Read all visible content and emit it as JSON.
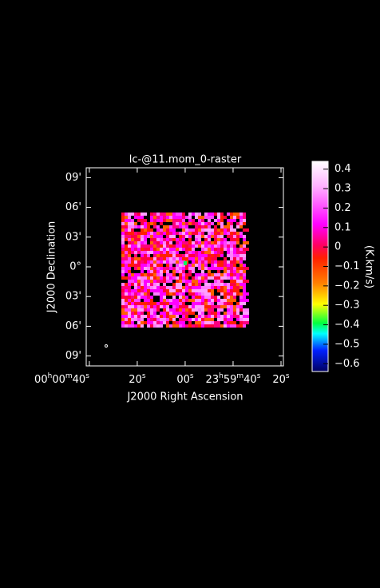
{
  "chart_data": {
    "type": "image",
    "title": "lc-@11.mom_0-raster",
    "x_label": "J2000 Right Ascension",
    "y_label": "J2000 Declination",
    "xlim": [
      41.3,
      -41
    ],
    "xticks": [
      {
        "value": 40,
        "label": "00h00m40s"
      },
      {
        "value": 20,
        "label": "20s"
      },
      {
        "value": 0,
        "label": "00s"
      },
      {
        "value": -20,
        "label": "23h59m40s"
      },
      {
        "value": -40,
        "label": "20s"
      }
    ],
    "ylim": [
      -10,
      10
    ],
    "yticks": [
      {
        "value": 9,
        "label": "09'"
      },
      {
        "value": 6,
        "label": "06'"
      },
      {
        "value": 3,
        "label": "03'"
      },
      {
        "value": 0,
        "label": "0°"
      },
      {
        "value": -3,
        "label": "03'"
      },
      {
        "value": -6,
        "label": "06'"
      },
      {
        "value": -9,
        "label": "09'"
      }
    ],
    "colorbar": {
      "label": "(K.km/s)",
      "lim": [
        -0.64,
        0.44
      ],
      "ticks": [
        {
          "value": 0.4,
          "label": "0.4"
        },
        {
          "value": 0.3,
          "label": "0.3"
        },
        {
          "value": 0.2,
          "label": "0.2"
        },
        {
          "value": 0.1,
          "label": "0.1"
        },
        {
          "value": 0,
          "label": "0"
        },
        {
          "value": -0.1,
          "label": "−0.1"
        },
        {
          "value": -0.2,
          "label": "−0.2"
        },
        {
          "value": -0.3,
          "label": "−0.3"
        },
        {
          "value": -0.4,
          "label": "−0.4"
        },
        {
          "value": -0.5,
          "label": "−0.5"
        },
        {
          "value": -0.6,
          "label": "−0.6"
        }
      ]
    }
  }
}
